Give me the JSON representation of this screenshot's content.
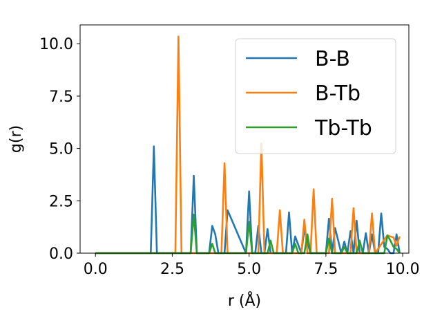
{
  "chart_data": {
    "type": "line",
    "title": "",
    "xlabel": "r (Å)",
    "ylabel": "g(r)",
    "xlim": [
      -0.5,
      10.2
    ],
    "ylim": [
      0,
      10.9
    ],
    "xticks": [
      0.0,
      2.5,
      5.0,
      7.5,
      10.0
    ],
    "xtick_labels": [
      "0.0",
      "2.5",
      "5.0",
      "7.5",
      "10.0"
    ],
    "yticks": [
      0.0,
      2.5,
      5.0,
      7.5,
      10.0
    ],
    "ytick_labels": [
      "0.0",
      "2.5",
      "5.0",
      "7.5",
      "10.0"
    ],
    "grid": false,
    "legend_position": "top-right",
    "series": [
      {
        "name": "B-B",
        "color": "#1f77b4",
        "x": [
          0.0,
          1.8,
          1.9,
          2.0,
          3.1,
          3.2,
          3.3,
          3.7,
          3.8,
          3.9,
          4.0,
          4.2,
          4.3,
          4.9,
          5.0,
          5.1,
          5.2,
          5.3,
          5.4,
          5.5,
          5.6,
          5.7,
          5.8,
          6.2,
          6.3,
          6.4,
          6.5,
          6.7,
          6.8,
          6.9,
          7.0,
          7.5,
          7.6,
          7.7,
          7.8,
          7.9,
          8.0,
          8.1,
          8.2,
          8.3,
          8.4,
          8.5,
          8.6,
          8.7,
          8.8,
          8.9,
          9.0,
          9.1,
          9.2,
          9.3,
          9.4,
          9.5,
          9.6,
          9.7,
          9.8,
          9.9
        ],
        "y": [
          0,
          0,
          5.1,
          0,
          0,
          3.7,
          0,
          0,
          1.3,
          0.9,
          0,
          0,
          2.05,
          0,
          2.95,
          0,
          0,
          1.3,
          0,
          0,
          1.15,
          0,
          0,
          0,
          1.95,
          0,
          0.8,
          0,
          1.15,
          0.5,
          0,
          0,
          1.65,
          0,
          1.2,
          0.6,
          0,
          0.55,
          0,
          1.05,
          0,
          1.55,
          0,
          0,
          0.95,
          0,
          0.9,
          0,
          0,
          1.9,
          0.3,
          0.2,
          0,
          0,
          0.9,
          0
        ]
      },
      {
        "name": "B-Tb",
        "color": "#ff7f0e",
        "x": [
          0.0,
          2.6,
          2.7,
          2.8,
          4.1,
          4.2,
          4.3,
          5.3,
          5.4,
          5.5,
          5.9,
          6.0,
          6.1,
          6.7,
          6.8,
          6.9,
          7.0,
          7.1,
          7.2,
          7.6,
          7.7,
          7.8,
          8.3,
          8.4,
          8.5,
          8.6,
          8.9,
          9.0,
          9.1,
          9.5,
          9.6,
          9.7,
          9.8,
          9.9
        ],
        "y": [
          0,
          0,
          10.35,
          0,
          0,
          4.3,
          0,
          0,
          5.25,
          0,
          0,
          2.05,
          0,
          0,
          1.6,
          0,
          0,
          3.05,
          0,
          0,
          2.6,
          0,
          0,
          2.15,
          0,
          0,
          0,
          1.9,
          0,
          0.85,
          0.8,
          0.75,
          0.35,
          0.8
        ]
      },
      {
        "name": "Tb-Tb",
        "color": "#2ca02c",
        "x": [
          0.0,
          3.1,
          3.2,
          3.3,
          3.7,
          3.8,
          3.9,
          4.9,
          5.0,
          5.1,
          5.6,
          5.7,
          5.8,
          6.4,
          6.5,
          6.6,
          6.8,
          6.9,
          7.0,
          7.5,
          7.6,
          7.7,
          8.0,
          8.1,
          8.2,
          8.5,
          8.6,
          8.7,
          9.4,
          9.5,
          9.6,
          9.7,
          9.8,
          9.9
        ],
        "y": [
          0,
          0,
          1.85,
          0,
          0,
          0.45,
          0,
          0,
          1.5,
          0,
          0,
          0.6,
          0,
          0,
          0.45,
          0,
          0,
          0.9,
          0,
          0,
          0.7,
          0,
          0,
          0.3,
          0,
          0,
          0.6,
          0,
          0,
          0.85,
          0.6,
          0.3,
          0.2,
          0
        ]
      }
    ]
  }
}
